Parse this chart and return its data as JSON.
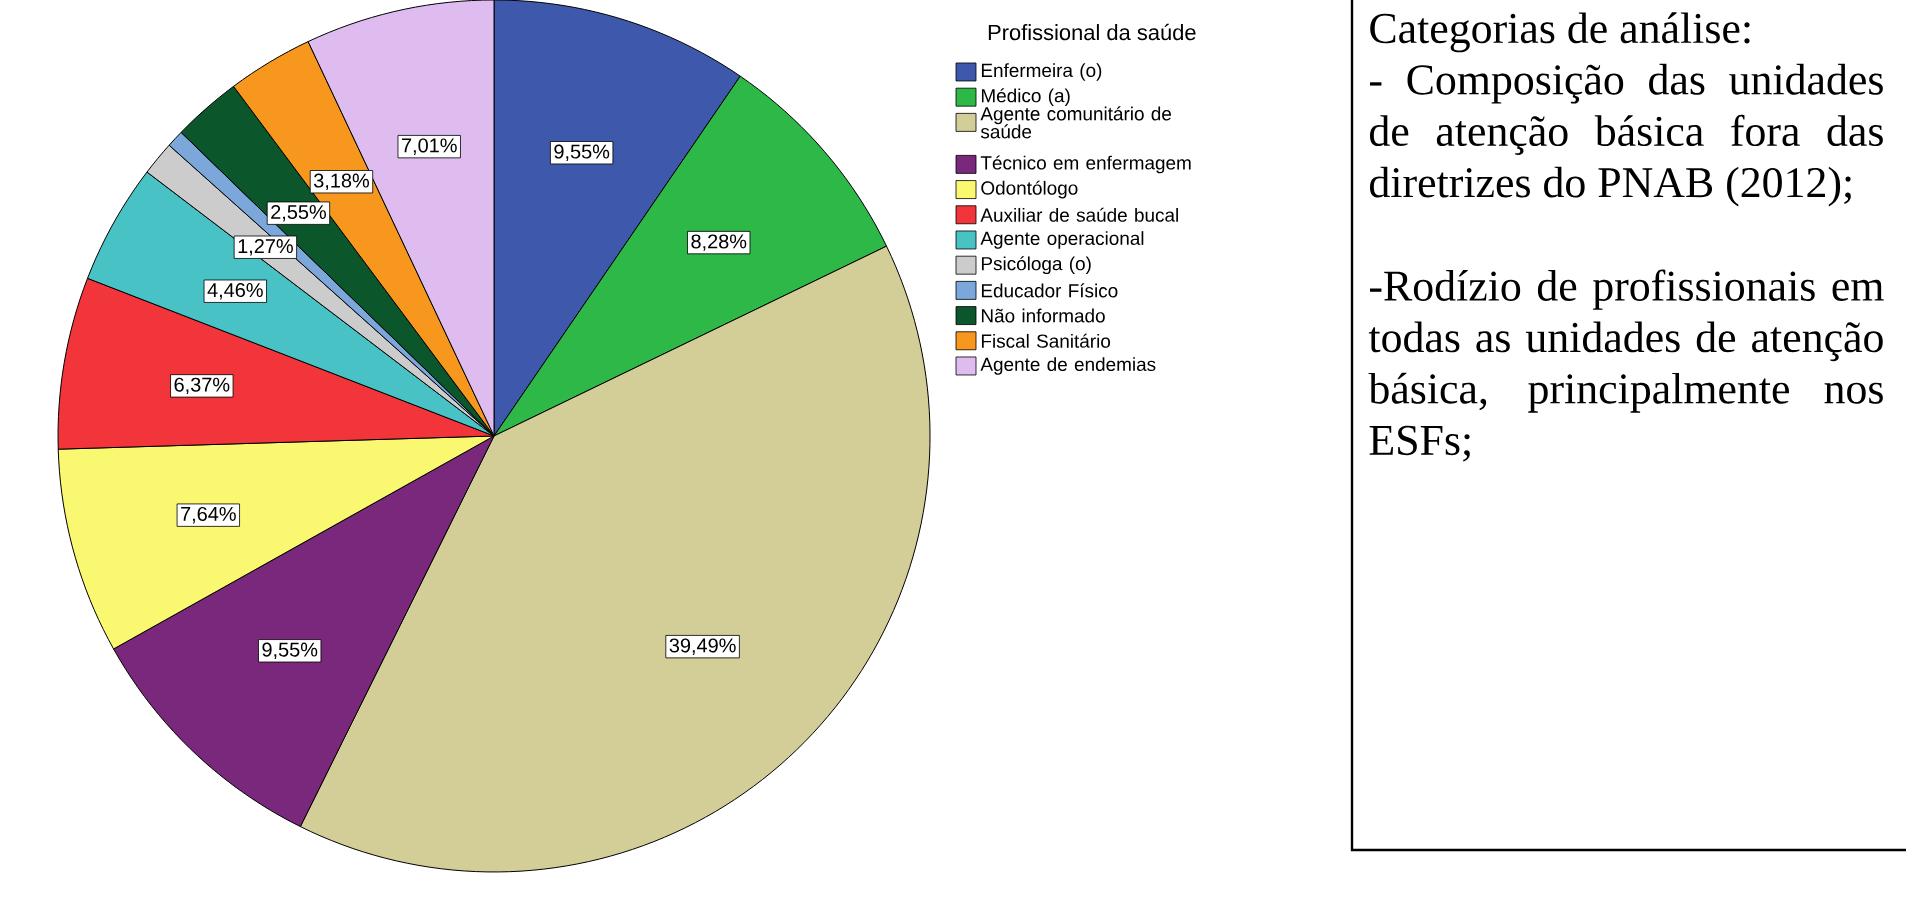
{
  "chart_data": [
    {
      "type": "pie",
      "legend_title": "Profissional da saúde",
      "legend": "right",
      "categories": [
        "Enfermeira (o)",
        "Médico (a)",
        "Agente comunitário de saúde",
        "Técnico em enfermagem",
        "Odontólogo",
        "Auxiliar de saúde bucal",
        "Agente operacional",
        "Psicóloga (o)",
        "Educador Físico",
        "Não informado",
        "Fiscal Sanitário",
        "Agente de endemias"
      ],
      "values": [
        9.55,
        8.28,
        39.49,
        9.55,
        7.64,
        6.37,
        4.46,
        1.27,
        0.64,
        2.55,
        3.18,
        7.01
      ],
      "value_labels": [
        "9,55%",
        "8,28%",
        "39,49%",
        "9,55%",
        "7,64%",
        "6,37%",
        "4,46%",
        "1,27%",
        null,
        "2,55%",
        "3,18%",
        "7,01%"
      ],
      "colors": [
        "#3e58ac",
        "#2eb848",
        "#d3ce97",
        "#7a287b",
        "#faf771",
        "#f1353b",
        "#48c2c5",
        "#cccccc",
        "#7ba7db",
        "#0b562b",
        "#f7971e",
        "#dfbcf0"
      ]
    },
    {
      "type": "other",
      "title": "Categorias de análise:",
      "annotations": [
        "- Composição das unidades de atenção básica fora das diretrizes do PNAB (2012);",
        "-Rodízio de profissionais em todas as unidades de atenção básica, principalmente nos ESFs;"
      ]
    }
  ]
}
